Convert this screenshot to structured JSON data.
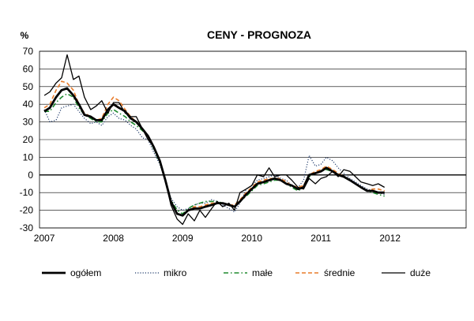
{
  "chart_data": {
    "type": "line",
    "title": "CENY - PROGNOZA",
    "ylabel": "%",
    "xlabel": "",
    "ylim": [
      -30,
      70
    ],
    "yticks": [
      -30,
      -20,
      -10,
      0,
      10,
      20,
      30,
      40,
      50,
      60,
      70
    ],
    "xlim": [
      2006.93,
      2013.1
    ],
    "xtick_labels": [
      "2007",
      "2008",
      "2009",
      "2010",
      "2011",
      "2012"
    ],
    "grid": true,
    "legend": "bottom",
    "series": [
      {
        "name": "ogółem",
        "color": "#000000",
        "style": "solid-thick",
        "x": [
          2007.0,
          2007.08,
          2007.17,
          2007.25,
          2007.33,
          2007.42,
          2007.5,
          2007.58,
          2007.67,
          2007.75,
          2007.83,
          2007.92,
          2008.0,
          2008.08,
          2008.17,
          2008.25,
          2008.33,
          2008.42,
          2008.5,
          2008.58,
          2008.67,
          2008.75,
          2008.83,
          2008.92,
          2009.0,
          2009.08,
          2009.17,
          2009.25,
          2009.33,
          2009.42,
          2009.5,
          2009.58,
          2009.67,
          2009.75,
          2009.83,
          2009.92,
          2010.0,
          2010.08,
          2010.17,
          2010.25,
          2010.33,
          2010.42,
          2010.5,
          2010.58,
          2010.67,
          2010.75,
          2010.83,
          2010.92,
          2011.0,
          2011.08,
          2011.17,
          2011.25,
          2011.33,
          2011.42,
          2011.5,
          2011.58,
          2011.67,
          2011.75,
          2011.83,
          2011.92
        ],
        "values": [
          36,
          38,
          44,
          48,
          49,
          45,
          40,
          34,
          33,
          31,
          31,
          37,
          40,
          38,
          36,
          32,
          30,
          26,
          22,
          16,
          8,
          -3,
          -15,
          -22,
          -23,
          -20,
          -19,
          -19,
          -18,
          -17,
          -16,
          -16,
          -17,
          -18,
          -15,
          -11,
          -8,
          -5,
          -4,
          -3,
          -2,
          -3,
          -5,
          -6,
          -8,
          -7,
          0,
          1,
          2,
          4,
          2,
          0,
          -1,
          -3,
          -5,
          -7,
          -9,
          -9,
          -10,
          -10
        ]
      },
      {
        "name": "mikro",
        "color": "#1f3a6b",
        "style": "dotted",
        "x": [
          2007.0,
          2007.08,
          2007.17,
          2007.25,
          2007.33,
          2007.42,
          2007.5,
          2007.58,
          2007.67,
          2007.75,
          2007.83,
          2007.92,
          2008.0,
          2008.08,
          2008.17,
          2008.25,
          2008.33,
          2008.42,
          2008.5,
          2008.58,
          2008.67,
          2008.75,
          2008.83,
          2008.92,
          2009.0,
          2009.08,
          2009.17,
          2009.25,
          2009.33,
          2009.42,
          2009.5,
          2009.58,
          2009.67,
          2009.75,
          2009.83,
          2009.92,
          2010.0,
          2010.08,
          2010.17,
          2010.25,
          2010.33,
          2010.42,
          2010.5,
          2010.58,
          2010.67,
          2010.75,
          2010.83,
          2010.92,
          2011.0,
          2011.08,
          2011.17,
          2011.25,
          2011.33,
          2011.42,
          2011.5,
          2011.58,
          2011.67,
          2011.75,
          2011.83,
          2011.92
        ],
        "values": [
          37,
          30,
          31,
          38,
          39,
          40,
          36,
          32,
          29,
          30,
          28,
          33,
          35,
          32,
          31,
          28,
          26,
          21,
          20,
          13,
          6,
          -3,
          -13,
          -18,
          -20,
          -19,
          -17,
          -16,
          -16,
          -14,
          -15,
          -17,
          -19,
          -21,
          -16,
          -8,
          -6,
          -3,
          -2,
          -1,
          0,
          -2,
          -3,
          -6,
          -7,
          -3,
          11,
          5,
          6,
          10,
          8,
          4,
          1,
          -2,
          -4,
          -6,
          -8,
          -9,
          -10,
          -11
        ]
      },
      {
        "name": "małe",
        "color": "#1e8a2e",
        "style": "dashdot",
        "x": [
          2007.0,
          2007.08,
          2007.17,
          2007.25,
          2007.33,
          2007.42,
          2007.5,
          2007.58,
          2007.67,
          2007.75,
          2007.83,
          2007.92,
          2008.0,
          2008.08,
          2008.17,
          2008.25,
          2008.33,
          2008.42,
          2008.5,
          2008.58,
          2008.67,
          2008.75,
          2008.83,
          2008.92,
          2009.0,
          2009.08,
          2009.17,
          2009.25,
          2009.33,
          2009.42,
          2009.5,
          2009.58,
          2009.67,
          2009.75,
          2009.83,
          2009.92,
          2010.0,
          2010.08,
          2010.17,
          2010.25,
          2010.33,
          2010.42,
          2010.5,
          2010.58,
          2010.67,
          2010.75,
          2010.83,
          2010.92,
          2011.0,
          2011.08,
          2011.17,
          2011.25,
          2011.33,
          2011.42,
          2011.5,
          2011.58,
          2011.67,
          2011.75,
          2011.83,
          2011.92
        ],
        "values": [
          36,
          36,
          41,
          44,
          46,
          44,
          38,
          34,
          32,
          30,
          30,
          35,
          37,
          35,
          33,
          30,
          28,
          25,
          22,
          15,
          7,
          -3,
          -14,
          -20,
          -22,
          -19,
          -17,
          -16,
          -15,
          -15,
          -15,
          -16,
          -17,
          -18,
          -15,
          -12,
          -9,
          -6,
          -5,
          -4,
          -3,
          -3,
          -5,
          -7,
          -9,
          -7,
          -1,
          1,
          2,
          3,
          2,
          0,
          -1,
          -3,
          -5,
          -7,
          -9,
          -10,
          -11,
          -12
        ]
      },
      {
        "name": "średnie",
        "color": "#e87b2a",
        "style": "dashed",
        "x": [
          2007.0,
          2007.08,
          2007.17,
          2007.25,
          2007.33,
          2007.42,
          2007.5,
          2007.58,
          2007.67,
          2007.75,
          2007.83,
          2007.92,
          2008.0,
          2008.08,
          2008.17,
          2008.25,
          2008.33,
          2008.42,
          2008.5,
          2008.58,
          2008.67,
          2008.75,
          2008.83,
          2008.92,
          2009.0,
          2009.08,
          2009.17,
          2009.25,
          2009.33,
          2009.42,
          2009.5,
          2009.58,
          2009.67,
          2009.75,
          2009.83,
          2009.92,
          2010.0,
          2010.08,
          2010.17,
          2010.25,
          2010.33,
          2010.42,
          2010.5,
          2010.58,
          2010.67,
          2010.75,
          2010.83,
          2010.92,
          2011.0,
          2011.08,
          2011.17,
          2011.25,
          2011.33,
          2011.42,
          2011.5,
          2011.58,
          2011.67,
          2011.75,
          2011.83,
          2011.92
        ],
        "values": [
          38,
          40,
          48,
          53,
          52,
          48,
          40,
          35,
          33,
          31,
          32,
          40,
          44,
          42,
          37,
          33,
          30,
          26,
          22,
          16,
          8,
          -3,
          -15,
          -22,
          -23,
          -20,
          -18,
          -18,
          -17,
          -16,
          -16,
          -16,
          -17,
          -17,
          -14,
          -10,
          -7,
          -4,
          -3,
          -2,
          -2,
          -2,
          -4,
          -6,
          -7,
          -6,
          0,
          2,
          3,
          5,
          3,
          1,
          -1,
          -3,
          -5,
          -7,
          -9,
          -8,
          -8,
          -9
        ]
      },
      {
        "name": "duże",
        "color": "#000000",
        "style": "solid-thin",
        "x": [
          2007.0,
          2007.08,
          2007.17,
          2007.25,
          2007.33,
          2007.42,
          2007.5,
          2007.58,
          2007.67,
          2007.75,
          2007.83,
          2007.92,
          2008.0,
          2008.08,
          2008.17,
          2008.25,
          2008.33,
          2008.42,
          2008.5,
          2008.58,
          2008.67,
          2008.75,
          2008.83,
          2008.92,
          2009.0,
          2009.08,
          2009.17,
          2009.25,
          2009.33,
          2009.42,
          2009.5,
          2009.58,
          2009.67,
          2009.75,
          2009.83,
          2009.92,
          2010.0,
          2010.08,
          2010.17,
          2010.25,
          2010.33,
          2010.42,
          2010.5,
          2010.58,
          2010.67,
          2010.75,
          2010.83,
          2010.92,
          2011.0,
          2011.08,
          2011.17,
          2011.25,
          2011.33,
          2011.42,
          2011.5,
          2011.58,
          2011.67,
          2011.75,
          2011.83,
          2011.92
        ],
        "values": [
          45,
          47,
          52,
          55,
          68,
          54,
          56,
          44,
          37,
          39,
          42,
          35,
          41,
          41,
          35,
          33,
          33,
          26,
          20,
          16,
          8,
          -3,
          -17,
          -25,
          -28,
          -22,
          -26,
          -20,
          -24,
          -19,
          -15,
          -18,
          -16,
          -20,
          -10,
          -8,
          -6,
          0,
          -1,
          4,
          -1,
          0,
          0,
          -3,
          -7,
          -8,
          -2,
          -5,
          -2,
          -1,
          2,
          -1,
          3,
          2,
          -1,
          -4,
          -5,
          -6,
          -5,
          -7
        ]
      }
    ]
  }
}
